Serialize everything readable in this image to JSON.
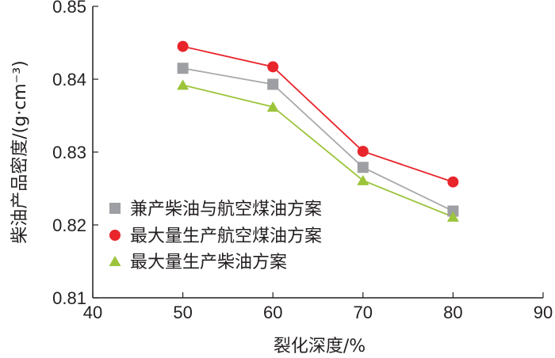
{
  "chart_data": {
    "type": "line",
    "xlabel": "裂化深度/%",
    "ylabel": "柴油产品密度/(g·cm⁻³)",
    "xlim": [
      40,
      90
    ],
    "ylim": [
      0.81,
      0.85
    ],
    "x_ticks": [
      "40",
      "50",
      "60",
      "70",
      "80",
      "90"
    ],
    "y_ticks": [
      "0.81",
      "0.82",
      "0.83",
      "0.84",
      "0.85"
    ],
    "x": [
      50,
      60,
      70,
      80
    ],
    "legend_position": "lower-left",
    "grid": false,
    "series": [
      {
        "name": "兼产柴油与航空煤油方案",
        "values": [
          0.8415,
          0.8393,
          0.8279,
          0.8219
        ],
        "line_color": "#a7a9ac",
        "marker_color": "#9d9fa2",
        "marker": "square"
      },
      {
        "name": "最大量生产航空煤油方案",
        "values": [
          0.8445,
          0.8417,
          0.8301,
          0.8259
        ],
        "line_color": "#e8252b",
        "marker_color": "#e8252b",
        "marker": "circle"
      },
      {
        "name": "最大量生产柴油方案",
        "values": [
          0.8392,
          0.8362,
          0.8261,
          0.8211
        ],
        "line_color": "#9cc43b",
        "marker_color": "#9cc43b",
        "marker": "triangle"
      }
    ]
  }
}
